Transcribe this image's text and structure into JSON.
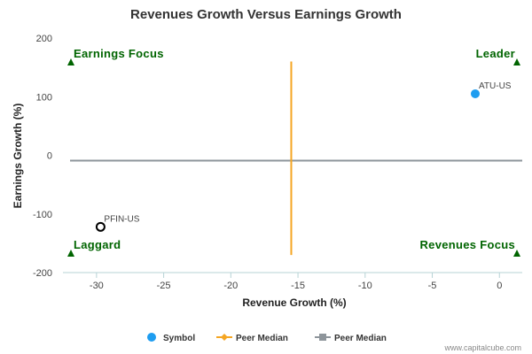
{
  "chart_data": {
    "type": "scatter",
    "title": "Revenues Growth Versus Earnings Growth",
    "xlabel": "Revenue Growth (%)",
    "ylabel": "Earnings Growth (%)",
    "xlim": [
      -32.5,
      1.7
    ],
    "ylim": [
      -200,
      200
    ],
    "x_ticks": [
      -30,
      -25,
      -20,
      -15,
      -10,
      -5,
      0
    ],
    "y_ticks": [
      200,
      100,
      0,
      -100,
      -200
    ],
    "points": [
      {
        "label": "ATU-US",
        "x": -1.8,
        "y": 105,
        "style": "filled",
        "color": "#1E9DF0"
      },
      {
        "label": "PFIN-US",
        "x": -29.7,
        "y": -122,
        "style": "hollow",
        "color": "#000000"
      }
    ],
    "peer_median_revenue_x": -15.5,
    "peer_median_earnings_y": -9,
    "peer_median_line_ylim": [
      -170,
      160
    ],
    "quadrants": {
      "top_left": "Earnings Focus",
      "top_right": "Leader",
      "bottom_left": "Laggard",
      "bottom_right": "Revenues Focus"
    },
    "legend": [
      {
        "label": "Symbol",
        "marker": "circle",
        "color": "#1E9DF0"
      },
      {
        "label": "Peer Median",
        "marker": "diamond-line",
        "color": "#F5A623"
      },
      {
        "label": "Peer Median",
        "marker": "square-line",
        "color": "#8E959B"
      }
    ],
    "legend_position": "bottom",
    "grid": false
  },
  "credit": "www.capitalcube.com",
  "colors": {
    "quadrant_text": "#006400",
    "revenue_median_line": "#F5A623",
    "earnings_median_line": "#8E959B",
    "axis": "#B7D3D6"
  }
}
